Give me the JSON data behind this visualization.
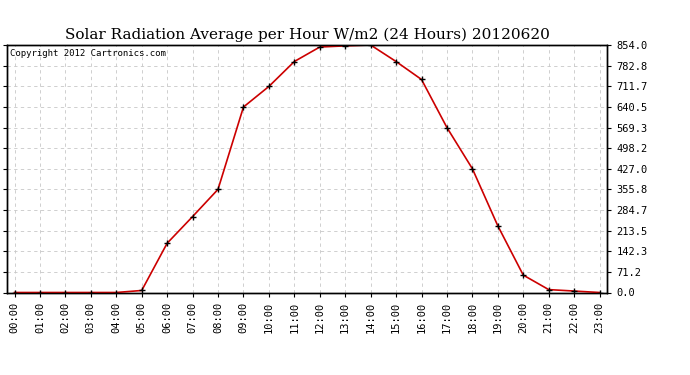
{
  "title": "Solar Radiation Average per Hour W/m2 (24 Hours) 20120620",
  "copyright": "Copyright 2012 Cartronics.com",
  "hours": [
    "00:00",
    "01:00",
    "02:00",
    "03:00",
    "04:00",
    "05:00",
    "06:00",
    "07:00",
    "08:00",
    "09:00",
    "10:00",
    "11:00",
    "12:00",
    "13:00",
    "14:00",
    "15:00",
    "16:00",
    "17:00",
    "18:00",
    "19:00",
    "20:00",
    "21:00",
    "22:00",
    "23:00"
  ],
  "values": [
    0.0,
    0.0,
    0.0,
    0.0,
    0.0,
    7.0,
    170.0,
    262.0,
    356.0,
    640.0,
    711.0,
    797.0,
    847.0,
    851.0,
    854.0,
    797.0,
    735.0,
    569.0,
    427.0,
    230.0,
    60.0,
    10.0,
    5.0,
    0.0
  ],
  "y_ticks": [
    0.0,
    71.2,
    142.3,
    213.5,
    284.7,
    355.8,
    427.0,
    498.2,
    569.3,
    640.5,
    711.7,
    782.8,
    854.0
  ],
  "ymax": 854.0,
  "ymin": 0.0,
  "line_color": "#cc0000",
  "marker_color": "#000000",
  "grid_color": "#c8c8c8",
  "bg_color": "#ffffff",
  "title_color": "#000000",
  "copyright_color": "#000000",
  "title_fontsize": 11,
  "copyright_fontsize": 6.5,
  "tick_fontsize": 7.5,
  "ytick_label_right": [
    "0.0",
    "71.2",
    "142.3",
    "213.5",
    "284.7",
    "355.8",
    "427.0",
    "498.2",
    "569.3",
    "640.5",
    "711.7",
    "782.8",
    "854.0"
  ]
}
